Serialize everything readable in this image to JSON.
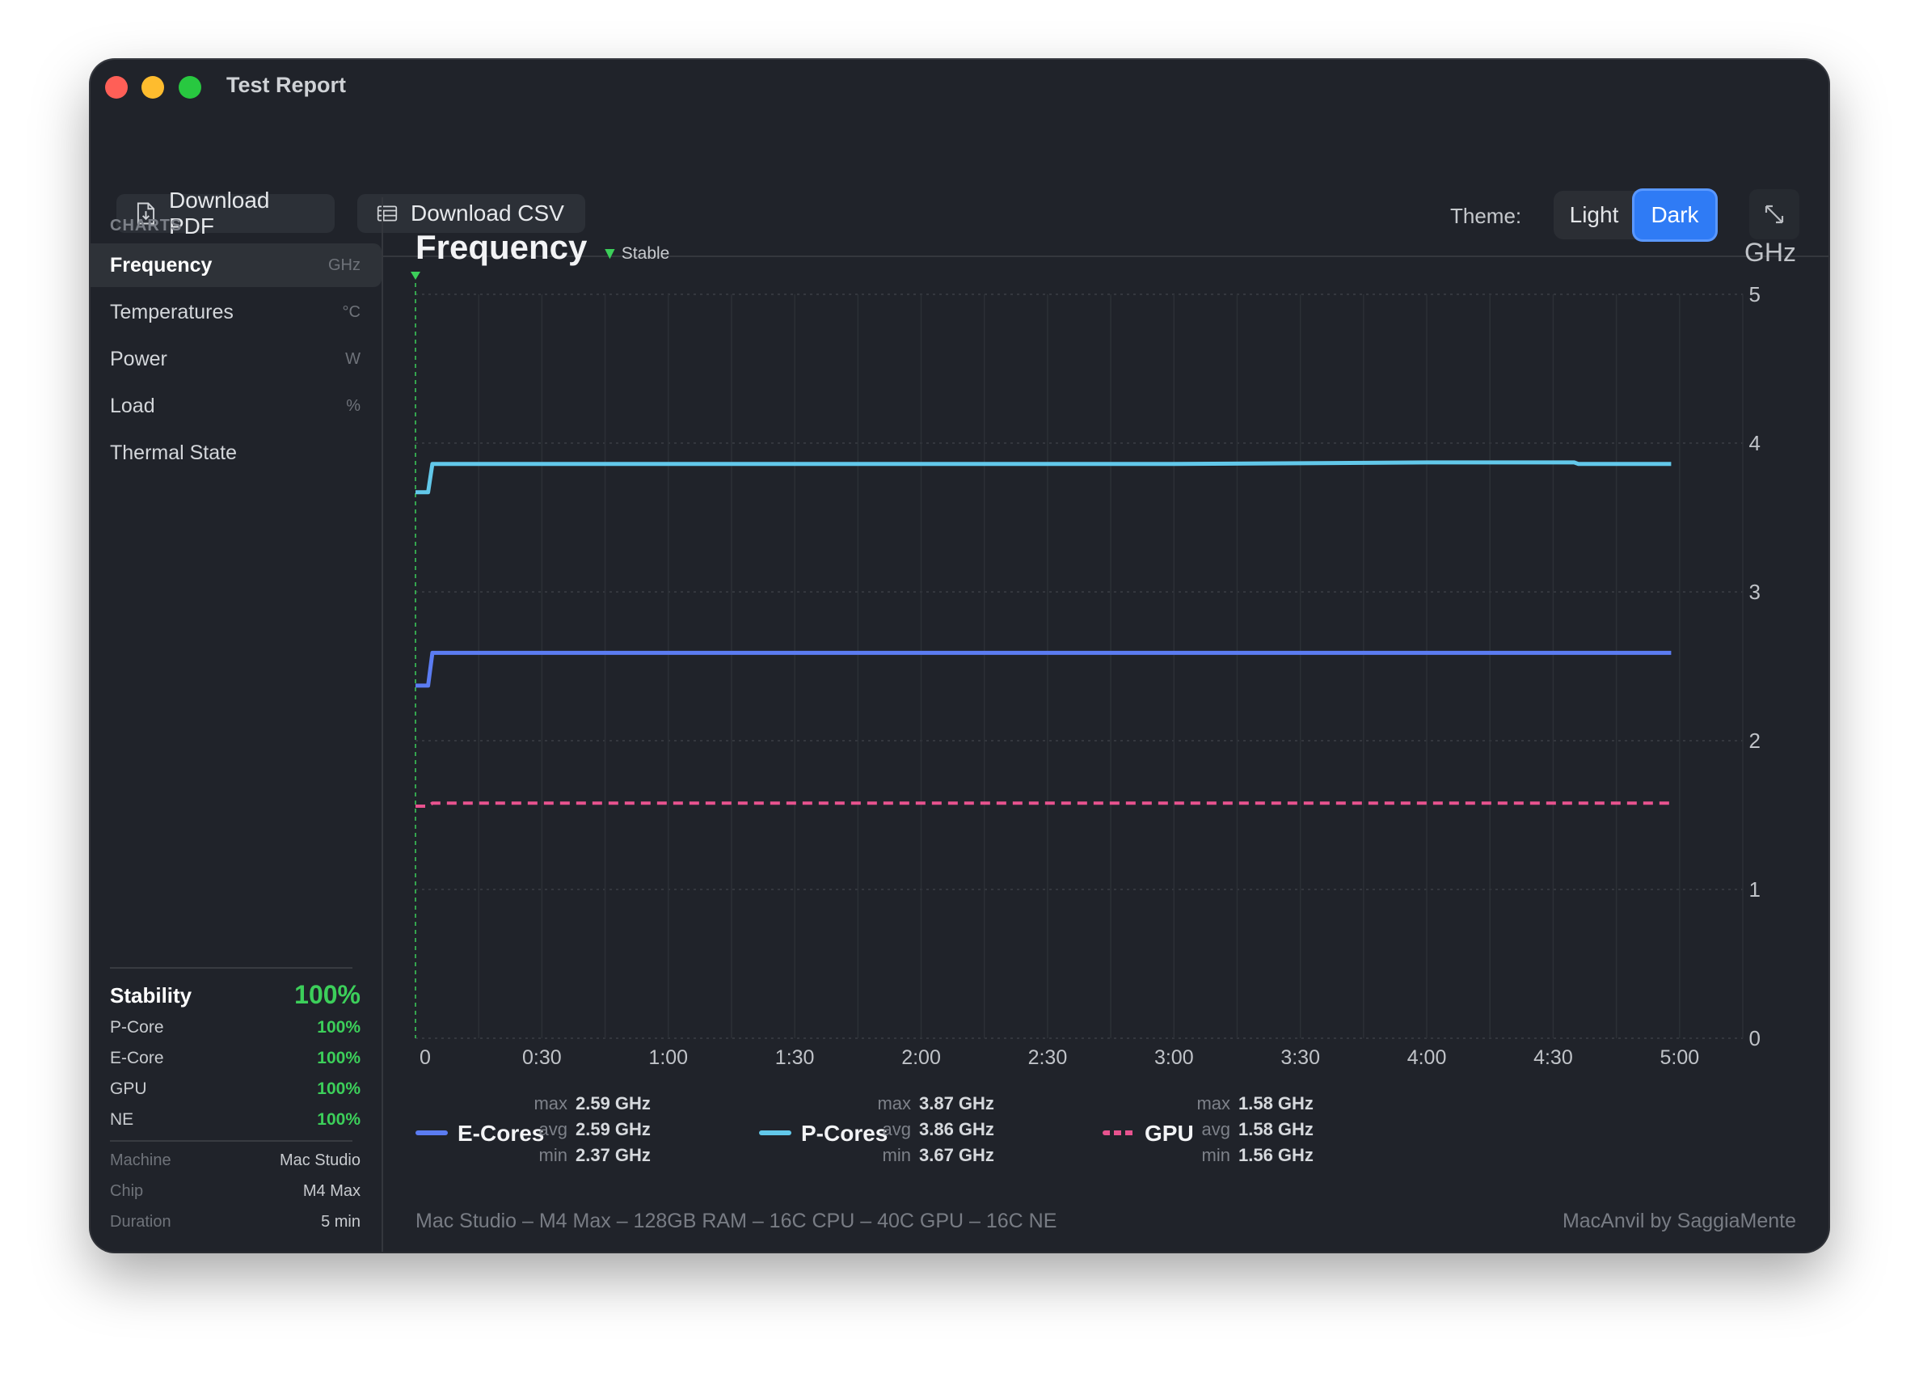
{
  "window": {
    "title": "Test Report"
  },
  "toolbar": {
    "download_pdf": "Download PDF",
    "download_csv": "Download CSV",
    "theme_label": "Theme:",
    "theme_light": "Light",
    "theme_dark": "Dark",
    "selected_theme": "Dark"
  },
  "sidebar": {
    "heading": "CHARTS",
    "items": [
      {
        "label": "Frequency",
        "unit": "GHz",
        "active": true
      },
      {
        "label": "Temperatures",
        "unit": "°C"
      },
      {
        "label": "Power",
        "unit": "W"
      },
      {
        "label": "Load",
        "unit": "%"
      },
      {
        "label": "Thermal State",
        "unit": ""
      }
    ],
    "stability": {
      "label": "Stability",
      "value": "100%",
      "rows": [
        {
          "label": "P-Core",
          "value": "100%"
        },
        {
          "label": "E-Core",
          "value": "100%"
        },
        {
          "label": "GPU",
          "value": "100%"
        },
        {
          "label": "NE",
          "value": "100%"
        }
      ]
    },
    "machine_info": [
      {
        "label": "Machine",
        "value": "Mac Studio"
      },
      {
        "label": "Chip",
        "value": "M4 Max"
      },
      {
        "label": "Duration",
        "value": "5 min"
      }
    ]
  },
  "main": {
    "title": "Frequency",
    "status": "Stable",
    "unit": "GHz",
    "footer_left": "Mac Studio – M4 Max – 128GB RAM – 16C CPU – 40C GPU – 16C NE",
    "footer_right": "MacAnvil by SaggiaMente"
  },
  "legend": [
    {
      "name": "E-Cores",
      "color": "#5b7cf2",
      "dashed": false,
      "max": "2.59 GHz",
      "avg": "2.59 GHz",
      "min": "2.37 GHz"
    },
    {
      "name": "P-Cores",
      "color": "#62c8ea",
      "dashed": false,
      "max": "3.87 GHz",
      "avg": "3.86 GHz",
      "min": "3.67 GHz"
    },
    {
      "name": "GPU",
      "color": "#e8538f",
      "dashed": true,
      "max": "1.58 GHz",
      "avg": "1.58 GHz",
      "min": "1.56 GHz"
    }
  ],
  "stat_labels": {
    "max": "max",
    "avg": "avg",
    "min": "min"
  },
  "chart_data": {
    "type": "line",
    "title": "Frequency",
    "ylabel": "GHz",
    "xlabel": "",
    "ylim": [
      0,
      5
    ],
    "xlim_seconds": [
      0,
      315
    ],
    "y_ticks": [
      "0",
      "1",
      "2",
      "3",
      "4",
      "5"
    ],
    "x_ticks": [
      {
        "t": 0,
        "label": "0"
      },
      {
        "t": 30,
        "label": "0:30"
      },
      {
        "t": 60,
        "label": "1:00"
      },
      {
        "t": 90,
        "label": "1:30"
      },
      {
        "t": 120,
        "label": "2:00"
      },
      {
        "t": 150,
        "label": "2:30"
      },
      {
        "t": 180,
        "label": "3:00"
      },
      {
        "t": 210,
        "label": "3:30"
      },
      {
        "t": 240,
        "label": "4:00"
      },
      {
        "t": 270,
        "label": "4:30"
      },
      {
        "t": 300,
        "label": "5:00"
      }
    ],
    "grid": true,
    "marker_at": 0,
    "series": [
      {
        "name": "E-Cores",
        "color": "#5b7cf2",
        "dashed": false,
        "points": [
          [
            0,
            2.37
          ],
          [
            3,
            2.37
          ],
          [
            4,
            2.59
          ],
          [
            60,
            2.59
          ],
          [
            120,
            2.59
          ],
          [
            180,
            2.59
          ],
          [
            240,
            2.59
          ],
          [
            298,
            2.59
          ]
        ]
      },
      {
        "name": "P-Cores",
        "color": "#62c8ea",
        "dashed": false,
        "points": [
          [
            0,
            3.67
          ],
          [
            3,
            3.67
          ],
          [
            4,
            3.86
          ],
          [
            60,
            3.86
          ],
          [
            120,
            3.86
          ],
          [
            180,
            3.86
          ],
          [
            240,
            3.87
          ],
          [
            275,
            3.87
          ],
          [
            276,
            3.86
          ],
          [
            298,
            3.86
          ]
        ]
      },
      {
        "name": "GPU",
        "color": "#e8538f",
        "dashed": true,
        "points": [
          [
            0,
            1.56
          ],
          [
            3,
            1.56
          ],
          [
            4,
            1.58
          ],
          [
            120,
            1.58
          ],
          [
            240,
            1.58
          ],
          [
            298,
            1.58
          ]
        ]
      }
    ]
  }
}
